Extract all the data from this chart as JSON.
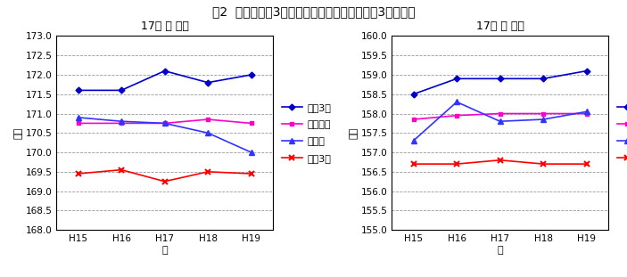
{
  "title": "図2  身長の上位3県、全国平均、三重県、下位3県の推移",
  "years": [
    "H15",
    "H16",
    "H17",
    "H18",
    "H19"
  ],
  "male": {
    "subtitle": "17歳 男 身長",
    "ylabel": "身長",
    "xlabel": "年",
    "ylim": [
      168.0,
      173.0
    ],
    "yticks": [
      168.0,
      168.5,
      169.0,
      169.5,
      170.0,
      170.5,
      171.0,
      171.5,
      172.0,
      172.5,
      173.0
    ],
    "top3": [
      171.6,
      171.6,
      172.1,
      171.8,
      172.0
    ],
    "national": [
      170.75,
      170.75,
      170.75,
      170.85,
      170.75
    ],
    "mie": [
      170.9,
      170.8,
      170.75,
      170.5,
      170.0
    ],
    "bottom3": [
      169.45,
      169.55,
      169.25,
      169.5,
      169.45
    ]
  },
  "female": {
    "subtitle": "17歳 女 身長",
    "ylabel": "身長",
    "xlabel": "年",
    "ylim": [
      155.0,
      160.0
    ],
    "yticks": [
      155.0,
      155.5,
      156.0,
      156.5,
      157.0,
      157.5,
      158.0,
      158.5,
      159.0,
      159.5,
      160.0
    ],
    "top3": [
      158.5,
      158.9,
      158.9,
      158.9,
      159.1
    ],
    "national": [
      157.85,
      157.95,
      158.0,
      158.0,
      158.0
    ],
    "mie": [
      157.3,
      158.3,
      157.8,
      157.85,
      158.05
    ],
    "bottom3": [
      156.7,
      156.7,
      156.8,
      156.7,
      156.7
    ]
  },
  "colors": {
    "top3": "#0000CC",
    "national": "#FF00CC",
    "mie": "#3333FF",
    "bottom3": "#FF0000"
  },
  "legend_labels": [
    "上位3県",
    "全国平均",
    "三重県",
    "下位3県"
  ],
  "title_fontsize": 10,
  "subtitle_fontsize": 9,
  "label_fontsize": 8,
  "tick_fontsize": 7.5,
  "legend_fontsize": 8
}
